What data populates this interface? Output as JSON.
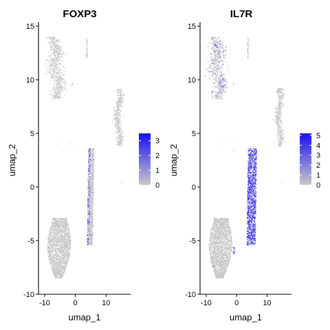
{
  "chart_data": [
    {
      "type": "scatter",
      "title": "FOXP3",
      "xlabel": "umap_1",
      "ylabel": "umap_2",
      "xticks": [
        -10,
        0,
        10
      ],
      "yticks": [
        -10,
        -5,
        0,
        5,
        10,
        15
      ],
      "xlim": [
        -12,
        18
      ],
      "ylim": [
        -10,
        15
      ],
      "grid": false,
      "legend_position": "right",
      "colors": {
        "low": "#c8c8c8",
        "high": "#1a0ff2"
      },
      "color_scale": {
        "min": 0,
        "max": 3.5,
        "ticks": [
          0,
          1,
          2,
          3
        ]
      },
      "clusters": [
        {
          "cells": "upper-left cluster",
          "x_range": [
            -8.5,
            -2.5
          ],
          "y_range": [
            8,
            14
          ],
          "expression": "none"
        },
        {
          "cells": "small column",
          "x_range": [
            3.6,
            3.9
          ],
          "y_range": [
            12,
            14
          ],
          "expression": "none"
        },
        {
          "cells": "right cluster",
          "x_range": [
            12.5,
            15.5
          ],
          "y_range": [
            4,
            9
          ],
          "expression": "none"
        },
        {
          "cells": "central elongated cluster",
          "x_range": [
            3,
            7
          ],
          "y_range": [
            -5.5,
            3.5
          ],
          "expression": "sparse on left edge"
        },
        {
          "cells": "lower-left cluster",
          "x_range": [
            -9,
            -1
          ],
          "y_range": [
            -8.5,
            -3
          ],
          "expression": "none"
        }
      ]
    },
    {
      "type": "scatter",
      "title": "IL7R",
      "xlabel": "umap_1",
      "ylabel": "umap_2",
      "xticks": [
        -10,
        0,
        10
      ],
      "yticks": [
        -10,
        -5,
        0,
        5,
        10,
        15
      ],
      "xlim": [
        -12,
        18
      ],
      "ylim": [
        -10,
        15
      ],
      "grid": false,
      "legend_position": "right",
      "colors": {
        "low": "#c8c8c8",
        "high": "#1a0ff2"
      },
      "color_scale": {
        "min": 0,
        "max": 5.2,
        "ticks": [
          0,
          1,
          2,
          3,
          4,
          5
        ]
      },
      "clusters": [
        {
          "cells": "upper-left cluster",
          "x_range": [
            -8.5,
            -2.5
          ],
          "y_range": [
            8,
            14
          ],
          "expression": "scattered"
        },
        {
          "cells": "small column",
          "x_range": [
            3.6,
            3.9
          ],
          "y_range": [
            12,
            14
          ],
          "expression": "none"
        },
        {
          "cells": "right cluster",
          "x_range": [
            12.5,
            15.5
          ],
          "y_range": [
            4,
            9
          ],
          "expression": "none"
        },
        {
          "cells": "central elongated cluster",
          "x_range": [
            3,
            7
          ],
          "y_range": [
            -5.5,
            3.5
          ],
          "expression": "high throughout"
        },
        {
          "cells": "lower-left cluster",
          "x_range": [
            -9,
            -1
          ],
          "y_range": [
            -8.5,
            -3
          ],
          "expression": "few cells"
        }
      ]
    }
  ]
}
